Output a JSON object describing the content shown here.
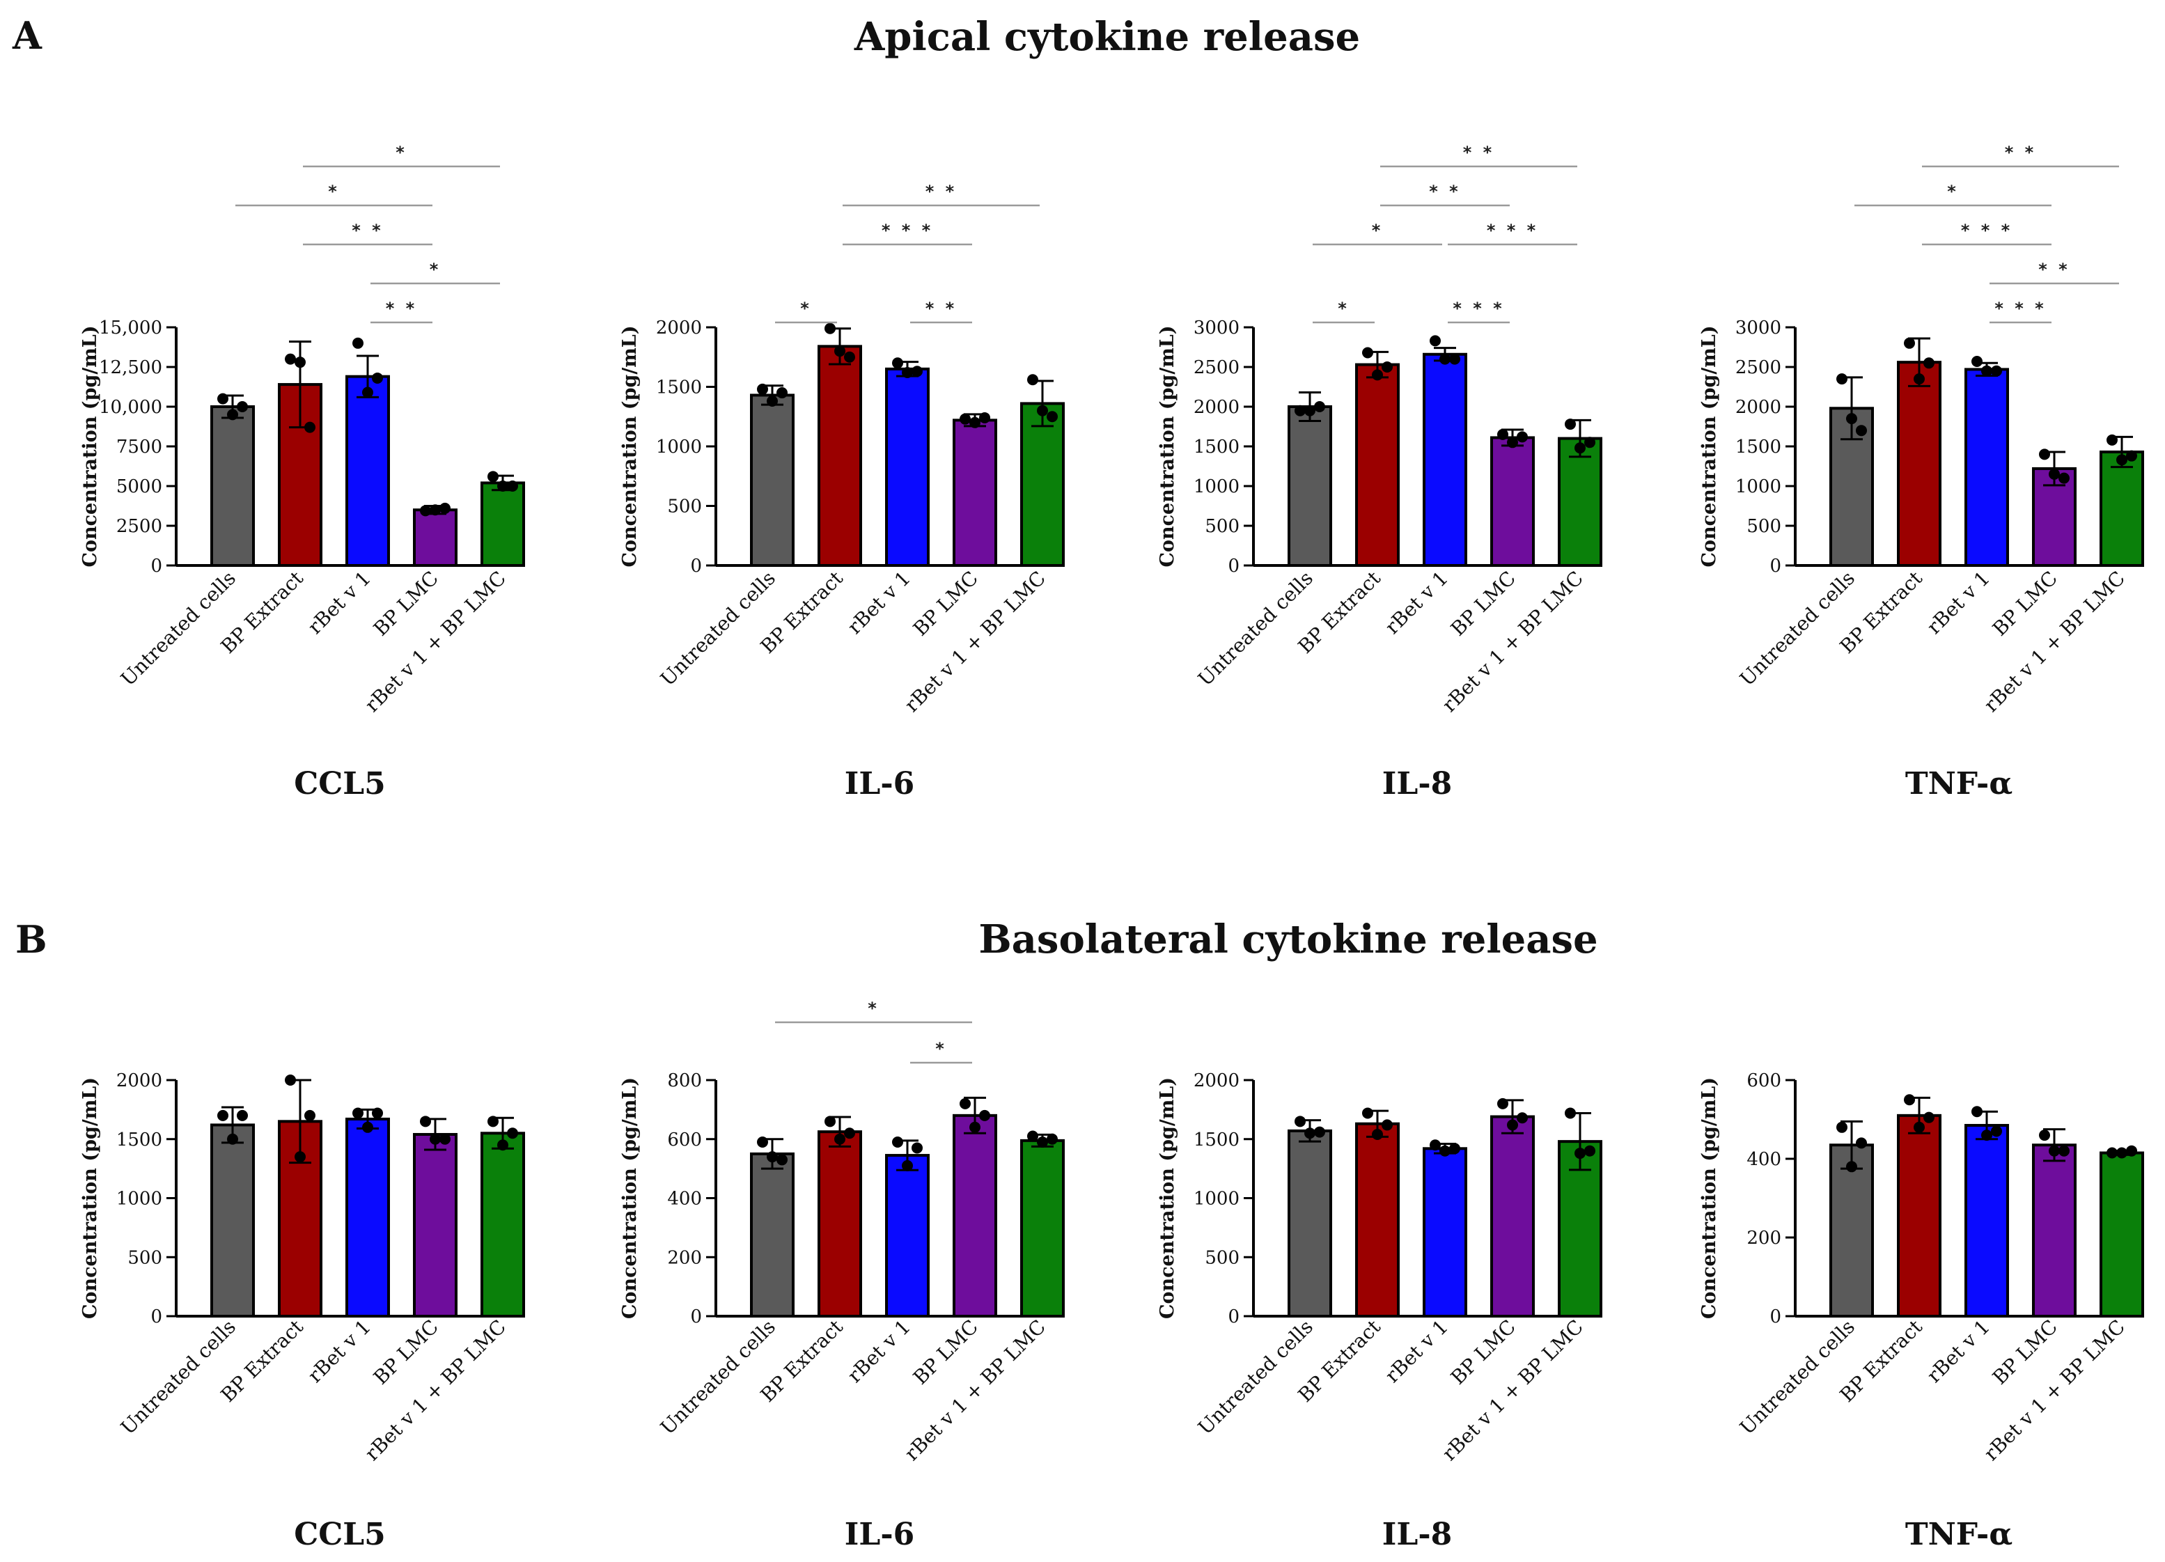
{
  "figure": {
    "panel_a_letter": "A",
    "panel_a_title": "Apical cytokine release",
    "panel_b_letter": "B",
    "panel_b_title": "Basolateral cytokine release"
  },
  "colors": [
    "#5a5a5a",
    "#9b0000",
    "#0a0aff",
    "#6e0d9c",
    "#0a800a"
  ],
  "chart_data": [
    {
      "type": "bar",
      "panel": "A",
      "title": "CCL5",
      "ylabel": "Concentration (pg/mL)",
      "categories": [
        "Untreated cells",
        "BP Extract",
        "rBet v 1",
        "BP LMC",
        "rBet v 1 + BP LMC"
      ],
      "values": [
        10000,
        11400,
        11900,
        3500,
        5200
      ],
      "errors": [
        700,
        2700,
        1300,
        250,
        450
      ],
      "points": [
        [
          10500,
          9500,
          10000
        ],
        [
          13000,
          12800,
          8700
        ],
        [
          14000,
          10900,
          11800
        ],
        [
          3450,
          3500,
          3600
        ],
        [
          5600,
          5000,
          5000
        ]
      ],
      "ylim": [
        0,
        15000
      ],
      "yticks": [
        0,
        2500,
        5000,
        7500,
        10000,
        12500,
        15000
      ],
      "ytick_labels": [
        "0",
        "2500",
        "5000",
        "7500",
        "10,000",
        "12,500",
        "15,000"
      ],
      "significance": [
        {
          "from": 1,
          "to": 4,
          "level": 4,
          "label": "*"
        },
        {
          "from": 0,
          "to": 3,
          "level": 3,
          "label": "*"
        },
        {
          "from": 1,
          "to": 3,
          "level": 2,
          "label": "* *"
        },
        {
          "from": 2,
          "to": 4,
          "level": 1,
          "label": "*"
        },
        {
          "from": 2,
          "to": 3,
          "level": 0,
          "label": "* *"
        }
      ]
    },
    {
      "type": "bar",
      "panel": "A",
      "title": "IL-6",
      "ylabel": "Concentration (pg/mL)",
      "categories": [
        "Untreated cells",
        "BP Extract",
        "rBet v 1",
        "BP LMC",
        "rBet v 1 + BP LMC"
      ],
      "values": [
        1430,
        1840,
        1650,
        1220,
        1360
      ],
      "errors": [
        80,
        150,
        60,
        50,
        190
      ],
      "points": [
        [
          1480,
          1380,
          1450
        ],
        [
          1990,
          1800,
          1750
        ],
        [
          1700,
          1620,
          1630
        ],
        [
          1230,
          1200,
          1240
        ],
        [
          1560,
          1300,
          1250
        ]
      ],
      "ylim": [
        0,
        2000
      ],
      "yticks": [
        0,
        500,
        1000,
        1500,
        2000
      ],
      "ytick_labels": [
        "0",
        "500",
        "1000",
        "1500",
        "2000"
      ],
      "significance": [
        {
          "from": 1,
          "to": 4,
          "level": 3,
          "label": "* *"
        },
        {
          "from": 1,
          "to": 3,
          "level": 2,
          "label": "* * *"
        },
        {
          "from": 0,
          "to": 1,
          "level": 0,
          "label": "*"
        },
        {
          "from": 2,
          "to": 3,
          "level": 0,
          "label": "* *"
        }
      ]
    },
    {
      "type": "bar",
      "panel": "A",
      "title": "IL-8",
      "ylabel": "Concentration (pg/mL)",
      "categories": [
        "Untreated cells",
        "BP Extract",
        "rBet v 1",
        "BP LMC",
        "rBet v 1 + BP LMC"
      ],
      "values": [
        2000,
        2530,
        2660,
        1610,
        1600
      ],
      "errors": [
        180,
        160,
        80,
        100,
        230
      ],
      "points": [
        [
          1950,
          1950,
          2000
        ],
        [
          2680,
          2400,
          2500
        ],
        [
          2830,
          2600,
          2600
        ],
        [
          1650,
          1550,
          1620
        ],
        [
          1780,
          1480,
          1550
        ]
      ],
      "ylim": [
        0,
        3000
      ],
      "yticks": [
        0,
        500,
        1000,
        1500,
        2000,
        2500,
        3000
      ],
      "ytick_labels": [
        "0",
        "500",
        "1000",
        "1500",
        "2000",
        "2500",
        "3000"
      ],
      "significance": [
        {
          "from": 1,
          "to": 4,
          "level": 4,
          "label": "* *"
        },
        {
          "from": 1,
          "to": 3,
          "level": 3,
          "label": "* *"
        },
        {
          "from": 0,
          "to": 2,
          "level": 2,
          "label": "*"
        },
        {
          "from": 2,
          "to": 4,
          "level": 2,
          "label": "* * *"
        },
        {
          "from": 0,
          "to": 1,
          "level": 0,
          "label": "*"
        },
        {
          "from": 2,
          "to": 3,
          "level": 0,
          "label": "* * *"
        }
      ]
    },
    {
      "type": "bar",
      "panel": "A",
      "title": "TNF-α",
      "ylabel": "Concentration (pg/mL)",
      "categories": [
        "Untreated cells",
        "BP Extract",
        "rBet v 1",
        "BP LMC",
        "rBet v 1 + BP LMC"
      ],
      "values": [
        1980,
        2560,
        2470,
        1220,
        1430
      ],
      "errors": [
        390,
        300,
        80,
        210,
        190
      ],
      "points": [
        [
          2350,
          1850,
          1700
        ],
        [
          2800,
          2350,
          2550
        ],
        [
          2570,
          2450,
          2450
        ],
        [
          1400,
          1150,
          1100
        ],
        [
          1580,
          1330,
          1380
        ]
      ],
      "ylim": [
        0,
        3000
      ],
      "yticks": [
        0,
        500,
        1000,
        1500,
        2000,
        2500,
        3000
      ],
      "ytick_labels": [
        "0",
        "500",
        "1000",
        "1500",
        "2000",
        "2500",
        "3000"
      ],
      "significance": [
        {
          "from": 1,
          "to": 4,
          "level": 4,
          "label": "* *"
        },
        {
          "from": 0,
          "to": 3,
          "level": 3,
          "label": "*"
        },
        {
          "from": 1,
          "to": 3,
          "level": 2,
          "label": "* * *"
        },
        {
          "from": 2,
          "to": 4,
          "level": 1,
          "label": "* *"
        },
        {
          "from": 2,
          "to": 3,
          "level": 0,
          "label": "* * *"
        }
      ]
    },
    {
      "type": "bar",
      "panel": "B",
      "title": "CCL5",
      "ylabel": "Concentration (pg/mL)",
      "categories": [
        "Untreated cells",
        "BP Extract",
        "rBet v 1",
        "BP LMC",
        "rBet v 1 + BP LMC"
      ],
      "values": [
        1620,
        1650,
        1670,
        1540,
        1550
      ],
      "errors": [
        150,
        350,
        80,
        130,
        130
      ],
      "points": [
        [
          1700,
          1500,
          1700
        ],
        [
          2000,
          1350,
          1700
        ],
        [
          1720,
          1600,
          1720
        ],
        [
          1650,
          1500,
          1500
        ],
        [
          1650,
          1450,
          1550
        ]
      ],
      "ylim": [
        0,
        2000
      ],
      "yticks": [
        0,
        500,
        1000,
        1500,
        2000
      ],
      "ytick_labels": [
        "0",
        "500",
        "1000",
        "1500",
        "2000"
      ],
      "significance": []
    },
    {
      "type": "bar",
      "panel": "B",
      "title": "IL-6",
      "ylabel": "Concentration (pg/mL)",
      "categories": [
        "Untreated cells",
        "BP Extract",
        "rBet v 1",
        "BP LMC",
        "rBet v 1 + BP LMC"
      ],
      "values": [
        550,
        625,
        545,
        680,
        595
      ],
      "errors": [
        50,
        50,
        50,
        60,
        20
      ],
      "points": [
        [
          590,
          540,
          530
        ],
        [
          660,
          600,
          620
        ],
        [
          590,
          510,
          570
        ],
        [
          720,
          640,
          680
        ],
        [
          610,
          590,
          600
        ]
      ],
      "ylim": [
        0,
        800
      ],
      "yticks": [
        0,
        200,
        400,
        600,
        800
      ],
      "ytick_labels": [
        "0",
        "200",
        "400",
        "600",
        "800"
      ],
      "significance": [
        {
          "from": 0,
          "to": 3,
          "level": 1,
          "label": "*"
        },
        {
          "from": 2,
          "to": 3,
          "level": 0,
          "label": "*"
        }
      ]
    },
    {
      "type": "bar",
      "panel": "B",
      "title": "IL-8",
      "ylabel": "Concentration (pg/mL)",
      "categories": [
        "Untreated cells",
        "BP Extract",
        "rBet v 1",
        "BP LMC",
        "rBet v 1 + BP LMC"
      ],
      "values": [
        1570,
        1630,
        1420,
        1690,
        1480
      ],
      "errors": [
        90,
        110,
        40,
        140,
        240
      ],
      "points": [
        [
          1650,
          1550,
          1560
        ],
        [
          1720,
          1540,
          1620
        ],
        [
          1450,
          1400,
          1420
        ],
        [
          1800,
          1620,
          1680
        ],
        [
          1720,
          1380,
          1400
        ]
      ],
      "ylim": [
        0,
        2000
      ],
      "yticks": [
        0,
        500,
        1000,
        1500,
        2000
      ],
      "ytick_labels": [
        "0",
        "500",
        "1000",
        "1500",
        "2000"
      ],
      "significance": []
    },
    {
      "type": "bar",
      "panel": "B",
      "title": "TNF-α",
      "ylabel": "Concentration (pg/mL)",
      "categories": [
        "Untreated cells",
        "BP Extract",
        "rBet v 1",
        "BP LMC",
        "rBet v 1 + BP LMC"
      ],
      "values": [
        435,
        510,
        485,
        435,
        415
      ],
      "errors": [
        60,
        45,
        35,
        40,
        5
      ],
      "points": [
        [
          480,
          380,
          440
        ],
        [
          550,
          480,
          505
        ],
        [
          520,
          460,
          470
        ],
        [
          460,
          420,
          420
        ],
        [
          415,
          415,
          420
        ]
      ],
      "ylim": [
        0,
        600
      ],
      "yticks": [
        0,
        200,
        400,
        600
      ],
      "ytick_labels": [
        "0",
        "200",
        "400",
        "600"
      ],
      "significance": []
    }
  ]
}
